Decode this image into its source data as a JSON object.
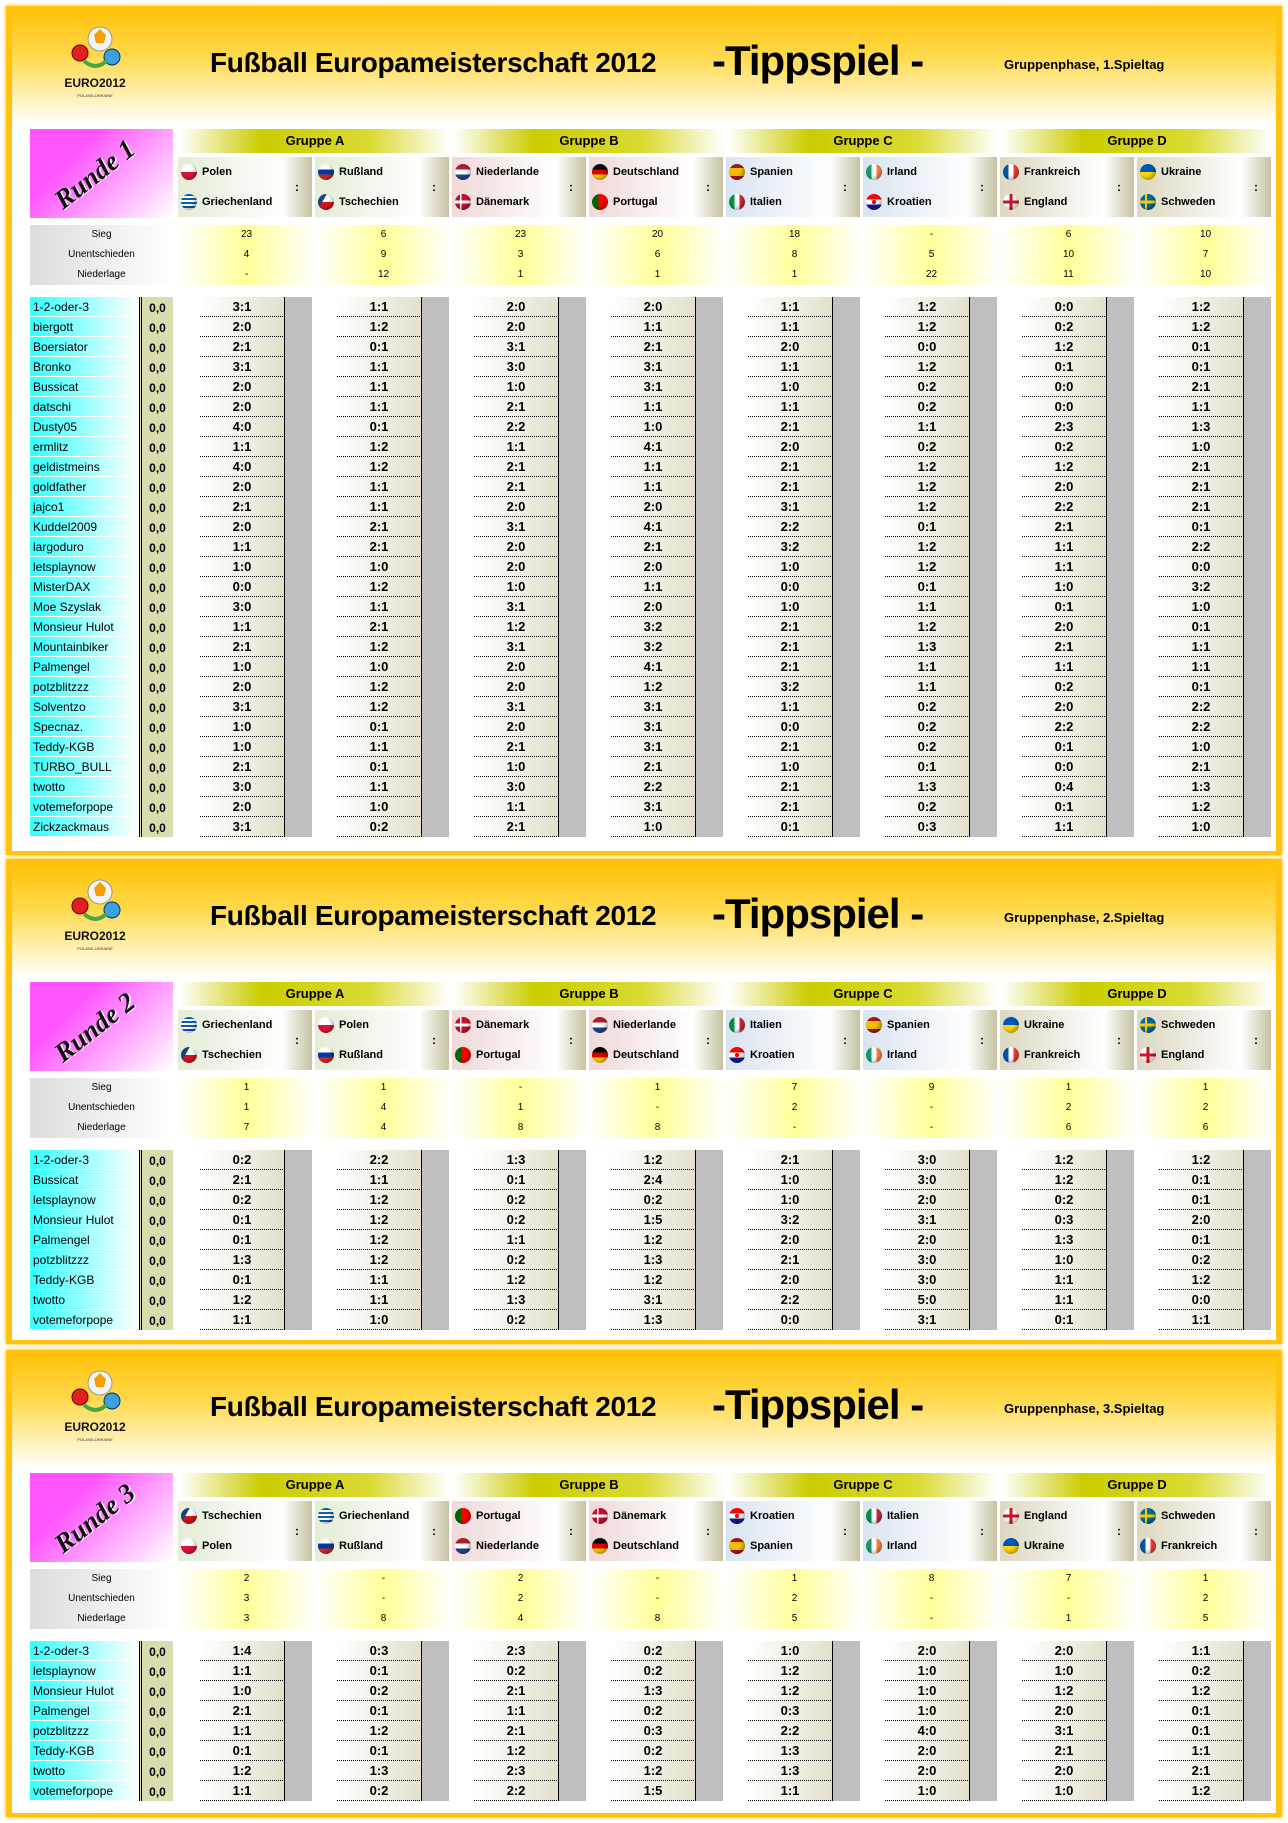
{
  "title": "Fußball Europameisterschaft 2012",
  "tippspiel": "-Tippspiel -",
  "logo_text": "EURO2012 POLAND-UKRAINE",
  "stat_labels": [
    "Sieg",
    "Unentschieden",
    "Niederlage"
  ],
  "colon": ":",
  "colors": {
    "border": "#ffc20e",
    "round_label": "#ff55ff",
    "name_column": "#33ffff",
    "group_header": "#cccc00"
  },
  "panels": [
    {
      "subtitle": "Gruppenphase, 1.Spieltag",
      "round_label": "Runde 1",
      "groups": [
        "Gruppe A",
        "Gruppe B",
        "Gruppe C",
        "Gruppe D"
      ],
      "matches": [
        {
          "home": {
            "name": "Polen",
            "flag": "poland"
          },
          "away": {
            "name": "Griechenland",
            "flag": "greece"
          },
          "stats": [
            "23",
            "4",
            "-"
          ]
        },
        {
          "home": {
            "name": "Rußland",
            "flag": "russia"
          },
          "away": {
            "name": "Tschechien",
            "flag": "czech"
          },
          "stats": [
            "6",
            "9",
            "12"
          ]
        },
        {
          "home": {
            "name": "Niederlande",
            "flag": "netherlands"
          },
          "away": {
            "name": "Dänemark",
            "flag": "denmark"
          },
          "stats": [
            "23",
            "3",
            "1"
          ]
        },
        {
          "home": {
            "name": "Deutschland",
            "flag": "germany"
          },
          "away": {
            "name": "Portugal",
            "flag": "portugal"
          },
          "stats": [
            "20",
            "6",
            "1"
          ]
        },
        {
          "home": {
            "name": "Spanien",
            "flag": "spain"
          },
          "away": {
            "name": "Italien",
            "flag": "italy"
          },
          "stats": [
            "18",
            "8",
            "1"
          ]
        },
        {
          "home": {
            "name": "Irland",
            "flag": "ireland"
          },
          "away": {
            "name": "Kroatien",
            "flag": "croatia"
          },
          "stats": [
            "-",
            "5",
            "22"
          ]
        },
        {
          "home": {
            "name": "Frankreich",
            "flag": "france"
          },
          "away": {
            "name": "England",
            "flag": "england"
          },
          "stats": [
            "6",
            "10",
            "11"
          ]
        },
        {
          "home": {
            "name": "Ukraine",
            "flag": "ukraine"
          },
          "away": {
            "name": "Schweden",
            "flag": "sweden"
          },
          "stats": [
            "10",
            "7",
            "10"
          ]
        }
      ],
      "rows": [
        {
          "name": "1-2-oder-3",
          "points": "0,0",
          "tips": [
            "3:1",
            "1:1",
            "2:0",
            "2:0",
            "1:1",
            "1:2",
            "0:0",
            "1:2"
          ]
        },
        {
          "name": "biergott",
          "points": "0,0",
          "tips": [
            "2:0",
            "1:2",
            "2:0",
            "1:1",
            "1:1",
            "1:2",
            "0:2",
            "1:2"
          ]
        },
        {
          "name": "Boersiator",
          "points": "0,0",
          "tips": [
            "2:1",
            "0:1",
            "3:1",
            "2:1",
            "2:0",
            "0:0",
            "1:2",
            "0:1"
          ]
        },
        {
          "name": "Bronko",
          "points": "0,0",
          "tips": [
            "3:1",
            "1:1",
            "3:0",
            "3:1",
            "1:1",
            "1:2",
            "0:1",
            "0:1"
          ]
        },
        {
          "name": "Bussicat",
          "points": "0,0",
          "tips": [
            "2:0",
            "1:1",
            "1:0",
            "3:1",
            "1:0",
            "0:2",
            "0:0",
            "2:1"
          ]
        },
        {
          "name": "datschi",
          "points": "0,0",
          "tips": [
            "2:0",
            "1:1",
            "2:1",
            "1:1",
            "1:1",
            "0:2",
            "0:0",
            "1:1"
          ]
        },
        {
          "name": "Dusty05",
          "points": "0,0",
          "tips": [
            "4:0",
            "0:1",
            "2:2",
            "1:0",
            "2:1",
            "1:1",
            "2:3",
            "1:3"
          ]
        },
        {
          "name": "ermlitz",
          "points": "0,0",
          "tips": [
            "1:1",
            "1:2",
            "1:1",
            "4:1",
            "2:0",
            "0:2",
            "0:2",
            "1:0"
          ]
        },
        {
          "name": "geldistmeins",
          "points": "0,0",
          "tips": [
            "4:0",
            "1:2",
            "2:1",
            "1:1",
            "2:1",
            "1:2",
            "1:2",
            "2:1"
          ]
        },
        {
          "name": "goldfather",
          "points": "0,0",
          "tips": [
            "2:0",
            "1:1",
            "2:1",
            "1:1",
            "2:1",
            "1:2",
            "2:0",
            "2:1"
          ]
        },
        {
          "name": "jajco1",
          "points": "0,0",
          "tips": [
            "2:1",
            "1:1",
            "2:0",
            "2:0",
            "3:1",
            "1:2",
            "2:2",
            "2:1"
          ]
        },
        {
          "name": "Kuddel2009",
          "points": "0,0",
          "tips": [
            "2:0",
            "2:1",
            "3:1",
            "4:1",
            "2:2",
            "0:1",
            "2:1",
            "0:1"
          ]
        },
        {
          "name": "largoduro",
          "points": "0,0",
          "tips": [
            "1:1",
            "2:1",
            "2:0",
            "2:1",
            "3:2",
            "1:2",
            "1:1",
            "2:2"
          ]
        },
        {
          "name": "letsplaynow",
          "points": "0,0",
          "tips": [
            "1:0",
            "1:0",
            "2:0",
            "2:0",
            "1:0",
            "1:2",
            "1:1",
            "0:0"
          ]
        },
        {
          "name": "MisterDAX",
          "points": "0,0",
          "tips": [
            "0:0",
            "1:2",
            "1:0",
            "1:1",
            "0:0",
            "0:1",
            "1:0",
            "3:2"
          ]
        },
        {
          "name": "Moe Szyslak",
          "points": "0,0",
          "tips": [
            "3:0",
            "1:1",
            "3:1",
            "2:0",
            "1:0",
            "1:1",
            "0:1",
            "1:0"
          ]
        },
        {
          "name": "Monsieur Hulot",
          "points": "0,0",
          "tips": [
            "1:1",
            "2:1",
            "1:2",
            "3:2",
            "2:1",
            "1:2",
            "2:0",
            "0:1"
          ]
        },
        {
          "name": "Mountainbiker",
          "points": "0,0",
          "tips": [
            "2:1",
            "1:2",
            "3:1",
            "3:2",
            "2:1",
            "1:3",
            "2:1",
            "1:1"
          ]
        },
        {
          "name": "Palmengel",
          "points": "0,0",
          "tips": [
            "1:0",
            "1:0",
            "2:0",
            "4:1",
            "2:1",
            "1:1",
            "1:1",
            "1:1"
          ]
        },
        {
          "name": "potzblitzzz",
          "points": "0,0",
          "tips": [
            "2:0",
            "1:2",
            "2:0",
            "1:2",
            "3:2",
            "1:1",
            "0:2",
            "0:1"
          ]
        },
        {
          "name": "Solventzo",
          "points": "0,0",
          "tips": [
            "3:1",
            "1:2",
            "3:1",
            "3:1",
            "1:1",
            "0:2",
            "2:0",
            "2:2"
          ]
        },
        {
          "name": "Specnaz.",
          "points": "0,0",
          "tips": [
            "1:0",
            "0:1",
            "2:0",
            "3:1",
            "0:0",
            "0:2",
            "2:2",
            "2:2"
          ]
        },
        {
          "name": "Teddy-KGB",
          "points": "0,0",
          "tips": [
            "1:0",
            "1:1",
            "2:1",
            "3:1",
            "2:1",
            "0:2",
            "0:1",
            "1:0"
          ]
        },
        {
          "name": "TURBO_BULL",
          "points": "0,0",
          "tips": [
            "2:1",
            "0:1",
            "1:0",
            "2:1",
            "1:0",
            "0:1",
            "0:0",
            "2:1"
          ]
        },
        {
          "name": "twotto",
          "points": "0,0",
          "tips": [
            "3:0",
            "1:1",
            "3:0",
            "2:2",
            "2:1",
            "1:3",
            "0:4",
            "1:3"
          ]
        },
        {
          "name": "votemeforpope",
          "points": "0,0",
          "tips": [
            "2:0",
            "1:0",
            "1:1",
            "3:1",
            "2:1",
            "0:2",
            "0:1",
            "1:2"
          ]
        },
        {
          "name": "Zickzackmaus",
          "points": "0,0",
          "tips": [
            "3:1",
            "0:2",
            "2:1",
            "1:0",
            "0:1",
            "0:3",
            "1:1",
            "1:0"
          ]
        }
      ]
    },
    {
      "subtitle": "Gruppenphase, 2.Spieltag",
      "round_label": "Runde 2",
      "groups": [
        "Gruppe A",
        "Gruppe B",
        "Gruppe C",
        "Gruppe D"
      ],
      "matches": [
        {
          "home": {
            "name": "Griechenland",
            "flag": "greece"
          },
          "away": {
            "name": "Tschechien",
            "flag": "czech"
          },
          "stats": [
            "1",
            "1",
            "7"
          ]
        },
        {
          "home": {
            "name": "Polen",
            "flag": "poland"
          },
          "away": {
            "name": "Rußland",
            "flag": "russia"
          },
          "stats": [
            "1",
            "4",
            "4"
          ]
        },
        {
          "home": {
            "name": "Dänemark",
            "flag": "denmark"
          },
          "away": {
            "name": "Portugal",
            "flag": "portugal"
          },
          "stats": [
            "-",
            "1",
            "8"
          ]
        },
        {
          "home": {
            "name": "Niederlande",
            "flag": "netherlands"
          },
          "away": {
            "name": "Deutschland",
            "flag": "germany"
          },
          "stats": [
            "1",
            "-",
            "8"
          ]
        },
        {
          "home": {
            "name": "Italien",
            "flag": "italy"
          },
          "away": {
            "name": "Kroatien",
            "flag": "croatia"
          },
          "stats": [
            "7",
            "2",
            "-"
          ]
        },
        {
          "home": {
            "name": "Spanien",
            "flag": "spain"
          },
          "away": {
            "name": "Irland",
            "flag": "ireland"
          },
          "stats": [
            "9",
            "-",
            "-"
          ]
        },
        {
          "home": {
            "name": "Ukraine",
            "flag": "ukraine"
          },
          "away": {
            "name": "Frankreich",
            "flag": "france"
          },
          "stats": [
            "1",
            "2",
            "6"
          ]
        },
        {
          "home": {
            "name": "Schweden",
            "flag": "sweden"
          },
          "away": {
            "name": "England",
            "flag": "england"
          },
          "stats": [
            "1",
            "2",
            "6"
          ]
        }
      ],
      "rows": [
        {
          "name": "1-2-oder-3",
          "points": "0,0",
          "tips": [
            "0:2",
            "2:2",
            "1:3",
            "1:2",
            "2:1",
            "3:0",
            "1:2",
            "1:2"
          ]
        },
        {
          "name": "Bussicat",
          "points": "0,0",
          "tips": [
            "2:1",
            "1:1",
            "0:1",
            "2:4",
            "1:0",
            "3:0",
            "1:2",
            "0:1"
          ]
        },
        {
          "name": "letsplaynow",
          "points": "0,0",
          "tips": [
            "0:2",
            "1:2",
            "0:2",
            "0:2",
            "1:0",
            "2:0",
            "0:2",
            "0:1"
          ]
        },
        {
          "name": "Monsieur Hulot",
          "points": "0,0",
          "tips": [
            "0:1",
            "1:2",
            "0:2",
            "1:5",
            "3:2",
            "3:1",
            "0:3",
            "2:0"
          ]
        },
        {
          "name": "Palmengel",
          "points": "0,0",
          "tips": [
            "0:1",
            "1:2",
            "1:1",
            "1:2",
            "2:0",
            "2:0",
            "1:3",
            "0:1"
          ]
        },
        {
          "name": "potzblitzzz",
          "points": "0,0",
          "tips": [
            "1:3",
            "1:2",
            "0:2",
            "1:3",
            "2:1",
            "3:0",
            "1:0",
            "0:2"
          ]
        },
        {
          "name": "Teddy-KGB",
          "points": "0,0",
          "tips": [
            "0:1",
            "1:1",
            "1:2",
            "1:2",
            "2:0",
            "3:0",
            "1:1",
            "1:2"
          ]
        },
        {
          "name": "twotto",
          "points": "0,0",
          "tips": [
            "1:2",
            "1:1",
            "1:3",
            "3:1",
            "2:2",
            "5:0",
            "1:1",
            "0:0"
          ]
        },
        {
          "name": "votemeforpope",
          "points": "0,0",
          "tips": [
            "1:1",
            "1:0",
            "0:2",
            "1:3",
            "0:0",
            "3:1",
            "0:1",
            "1:1"
          ]
        }
      ]
    },
    {
      "subtitle": "Gruppenphase, 3.Spieltag",
      "round_label": "Runde 3",
      "groups": [
        "Gruppe A",
        "Gruppe B",
        "Gruppe C",
        "Gruppe D"
      ],
      "matches": [
        {
          "home": {
            "name": "Tschechien",
            "flag": "czech"
          },
          "away": {
            "name": "Polen",
            "flag": "poland"
          },
          "stats": [
            "2",
            "3",
            "3"
          ]
        },
        {
          "home": {
            "name": "Griechenland",
            "flag": "greece"
          },
          "away": {
            "name": "Rußland",
            "flag": "russia"
          },
          "stats": [
            "-",
            "-",
            "8"
          ]
        },
        {
          "home": {
            "name": "Portugal",
            "flag": "portugal"
          },
          "away": {
            "name": "Niederlande",
            "flag": "netherlands"
          },
          "stats": [
            "2",
            "2",
            "4"
          ]
        },
        {
          "home": {
            "name": "Dänemark",
            "flag": "denmark"
          },
          "away": {
            "name": "Deutschland",
            "flag": "germany"
          },
          "stats": [
            "-",
            "-",
            "8"
          ]
        },
        {
          "home": {
            "name": "Kroatien",
            "flag": "croatia"
          },
          "away": {
            "name": "Spanien",
            "flag": "spain"
          },
          "stats": [
            "1",
            "2",
            "5"
          ]
        },
        {
          "home": {
            "name": "Italien",
            "flag": "italy"
          },
          "away": {
            "name": "Irland",
            "flag": "ireland"
          },
          "stats": [
            "8",
            "-",
            "-"
          ]
        },
        {
          "home": {
            "name": "England",
            "flag": "england"
          },
          "away": {
            "name": "Ukraine",
            "flag": "ukraine"
          },
          "stats": [
            "7",
            "-",
            "1"
          ]
        },
        {
          "home": {
            "name": "Schweden",
            "flag": "sweden"
          },
          "away": {
            "name": "Frankreich",
            "flag": "france"
          },
          "stats": [
            "1",
            "2",
            "5"
          ]
        }
      ],
      "rows": [
        {
          "name": "1-2-oder-3",
          "points": "0,0",
          "tips": [
            "1:4",
            "0:3",
            "2:3",
            "0:2",
            "1:0",
            "2:0",
            "2:0",
            "1:1"
          ]
        },
        {
          "name": "letsplaynow",
          "points": "0,0",
          "tips": [
            "1:1",
            "0:1",
            "0:2",
            "0:2",
            "1:2",
            "1:0",
            "1:0",
            "0:2"
          ]
        },
        {
          "name": "Monsieur Hulot",
          "points": "0,0",
          "tips": [
            "1:0",
            "0:2",
            "2:1",
            "1:3",
            "1:2",
            "1:0",
            "1:2",
            "1:2"
          ]
        },
        {
          "name": "Palmengel",
          "points": "0,0",
          "tips": [
            "2:1",
            "0:1",
            "1:1",
            "0:2",
            "0:3",
            "1:0",
            "2:0",
            "0:1"
          ]
        },
        {
          "name": "potzblitzzz",
          "points": "0,0",
          "tips": [
            "1:1",
            "1:2",
            "2:1",
            "0:3",
            "2:2",
            "4:0",
            "3:1",
            "0:1"
          ]
        },
        {
          "name": "Teddy-KGB",
          "points": "0,0",
          "tips": [
            "0:1",
            "0:1",
            "1:2",
            "0:2",
            "1:3",
            "2:0",
            "2:1",
            "1:1"
          ]
        },
        {
          "name": "twotto",
          "points": "0,0",
          "tips": [
            "1:2",
            "1:3",
            "2:3",
            "1:2",
            "1:3",
            "2:0",
            "2:0",
            "2:1"
          ]
        },
        {
          "name": "votemeforpope",
          "points": "0,0",
          "tips": [
            "1:1",
            "0:2",
            "2:2",
            "1:5",
            "1:1",
            "1:0",
            "1:0",
            "1:2"
          ]
        }
      ]
    }
  ]
}
